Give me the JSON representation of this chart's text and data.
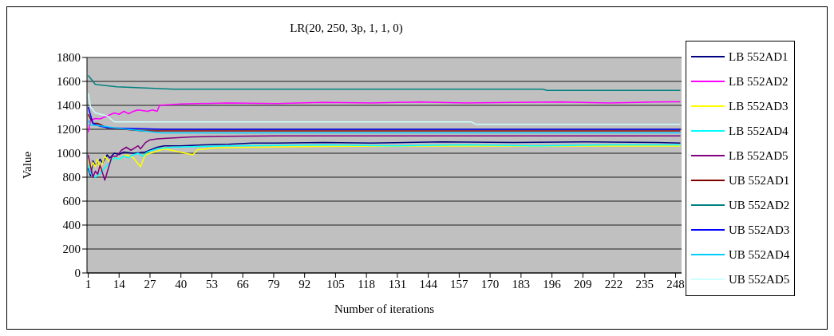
{
  "chart_data": {
    "type": "line",
    "title": "LR(20, 250, 3p, 1, 1, 0)",
    "xlabel": "Number of iterations",
    "ylabel": "Value",
    "xlim": [
      0.5,
      250.5
    ],
    "xticks": [
      1,
      14,
      27,
      40,
      53,
      66,
      79,
      92,
      105,
      118,
      131,
      144,
      157,
      170,
      183,
      196,
      209,
      222,
      235,
      248
    ],
    "ylim": [
      0,
      1800
    ],
    "yticks": [
      0,
      200,
      400,
      600,
      800,
      1000,
      1200,
      1400,
      1600,
      1800
    ],
    "grid": "y",
    "legend": "right",
    "series": [
      {
        "name": "LB 552AD1",
        "color": "#000080",
        "x": [
          1,
          2,
          3,
          4,
          6,
          7,
          9,
          10,
          12,
          14,
          16,
          20,
          25,
          30,
          33,
          40,
          50,
          60,
          70,
          80,
          100,
          120,
          150,
          180,
          210,
          240,
          250
        ],
        "values": [
          875,
          812,
          937,
          900,
          950,
          920,
          987,
          960,
          1000,
          990,
          1010,
          1000,
          1010,
          1050,
          1062,
          1062,
          1070,
          1075,
          1085,
          1085,
          1090,
          1085,
          1095,
          1090,
          1095,
          1090,
          1085
        ]
      },
      {
        "name": "LB 552AD2",
        "color": "#ff00ff",
        "x": [
          1,
          2,
          4,
          6,
          9,
          12,
          14,
          16,
          18,
          20,
          22,
          26,
          28,
          30,
          31,
          40,
          60,
          80,
          100,
          120,
          140,
          160,
          180,
          200,
          220,
          240,
          250
        ],
        "values": [
          1175,
          1275,
          1290,
          1287,
          1312,
          1337,
          1325,
          1350,
          1330,
          1350,
          1362,
          1350,
          1362,
          1350,
          1400,
          1412,
          1420,
          1415,
          1425,
          1420,
          1428,
          1420,
          1425,
          1428,
          1420,
          1428,
          1430
        ]
      },
      {
        "name": "LB 552AD3",
        "color": "#ffff00",
        "x": [
          1,
          2,
          3,
          4,
          5,
          6,
          8,
          10,
          12,
          14,
          17,
          20,
          23,
          25,
          29,
          33,
          36,
          45,
          47,
          55,
          70,
          90,
          110,
          140,
          180,
          220,
          250
        ],
        "values": [
          950,
          875,
          925,
          887,
          950,
          862,
          975,
          925,
          962,
          950,
          987,
          962,
          887,
          987,
          1012,
          1037,
          1025,
          987,
          1030,
          1045,
          1050,
          1055,
          1058,
          1060,
          1060,
          1060,
          1060
        ]
      },
      {
        "name": "LB 552AD4",
        "color": "#00ffff",
        "x": [
          1,
          2,
          3,
          4,
          6,
          8,
          10,
          12,
          14,
          16,
          18,
          20,
          22,
          24,
          26,
          30,
          36,
          45,
          60,
          80,
          100,
          130,
          160,
          190,
          220,
          250
        ],
        "values": [
          900,
          830,
          820,
          800,
          830,
          880,
          920,
          962,
          950,
          975,
          962,
          987,
          1000,
          975,
          1012,
          1037,
          1050,
          1055,
          1062,
          1065,
          1070,
          1062,
          1070,
          1062,
          1070,
          1070
        ]
      },
      {
        "name": "LB 552AD5",
        "color": "#800080",
        "x": [
          1,
          2,
          3,
          4,
          5,
          6,
          7,
          8,
          11,
          13,
          15,
          17,
          19,
          22,
          23,
          25,
          27,
          30,
          34,
          45,
          60,
          80,
          100,
          150,
          200,
          250
        ],
        "values": [
          987,
          887,
          800,
          850,
          825,
          900,
          837,
          775,
          975,
          975,
          1025,
          1050,
          1025,
          1062,
          1037,
          1087,
          1112,
          1120,
          1125,
          1137,
          1142,
          1145,
          1145,
          1145,
          1145,
          1145
        ]
      },
      {
        "name": "UB 552AD1",
        "color": "#800000",
        "x": [
          1,
          3,
          5,
          9,
          24,
          250
        ],
        "values": [
          1325,
          1250,
          1250,
          1212,
          1187,
          1187
        ]
      },
      {
        "name": "UB 552AD2",
        "color": "#008080",
        "x": [
          1,
          4,
          13,
          37,
          192,
          194,
          250
        ],
        "values": [
          1650,
          1575,
          1555,
          1535,
          1535,
          1525,
          1525
        ]
      },
      {
        "name": "UB 552AD3",
        "color": "#0000ff",
        "x": [
          1,
          3,
          6,
          10,
          33,
          250
        ],
        "values": [
          1387,
          1250,
          1225,
          1212,
          1200,
          1200
        ]
      },
      {
        "name": "UB 552AD4",
        "color": "#00ccff",
        "x": [
          1,
          2,
          8,
          12,
          32,
          250
        ],
        "values": [
          1275,
          1237,
          1225,
          1212,
          1170,
          1170
        ]
      },
      {
        "name": "UB 552AD5",
        "color": "#ccffff",
        "x": [
          1,
          2,
          4,
          9,
          12,
          162,
          164,
          250
        ],
        "values": [
          1500,
          1387,
          1337,
          1312,
          1262,
          1262,
          1242,
          1242
        ]
      }
    ]
  }
}
